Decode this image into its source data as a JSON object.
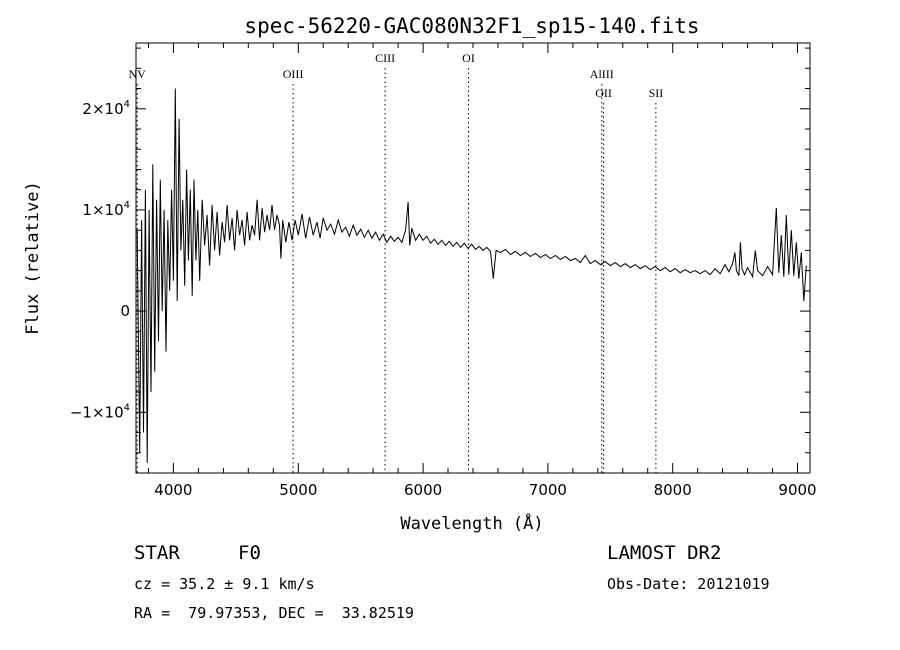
{
  "chart_data": {
    "type": "line",
    "title": "spec-56220-GAC080N32F1_sp15-140.fits",
    "xlabel": "Wavelength (Å)",
    "ylabel": "Flux (relative)",
    "xlim": [
      3700,
      9100
    ],
    "ylim": [
      -16000,
      26500
    ],
    "xticks": [
      {
        "value": 4000,
        "label": "4000"
      },
      {
        "value": 5000,
        "label": "5000"
      },
      {
        "value": 6000,
        "label": "6000"
      },
      {
        "value": 7000,
        "label": "7000"
      },
      {
        "value": 8000,
        "label": "8000"
      },
      {
        "value": 9000,
        "label": "9000"
      }
    ],
    "yticks": [
      {
        "value": 20000,
        "label": "2×10",
        "exp": "4"
      },
      {
        "value": 10000,
        "label": "1×10",
        "exp": "4"
      },
      {
        "value": 0,
        "label": "0",
        "exp": ""
      },
      {
        "value": -10000,
        "label": "−1×10",
        "exp": "4"
      }
    ],
    "lines": [
      {
        "name": "NV",
        "wavelength": 3710,
        "level": 0
      },
      {
        "name": "OIII",
        "wavelength": 4959,
        "level": 0
      },
      {
        "name": "CIII",
        "wavelength": 5696,
        "level": 1
      },
      {
        "name": "OI",
        "wavelength": 6364,
        "level": 1
      },
      {
        "name": "AlIII",
        "wavelength": 7432,
        "level": 0
      },
      {
        "name": "OII",
        "wavelength": 7446,
        "level": 2
      },
      {
        "name": "SII",
        "wavelength": 7865,
        "level": 2
      }
    ],
    "series": [
      {
        "points": [
          [
            3710,
            8000
          ],
          [
            3730,
            -14000
          ],
          [
            3745,
            9000
          ],
          [
            3760,
            -12000
          ],
          [
            3775,
            12000
          ],
          [
            3790,
            -15000
          ],
          [
            3805,
            10000
          ],
          [
            3820,
            -8000
          ],
          [
            3835,
            14500
          ],
          [
            3850,
            -6000
          ],
          [
            3865,
            11000
          ],
          [
            3880,
            -3000
          ],
          [
            3895,
            13000
          ],
          [
            3910,
            0
          ],
          [
            3925,
            10000
          ],
          [
            3940,
            -4000
          ],
          [
            3955,
            9000
          ],
          [
            3970,
            2000
          ],
          [
            3985,
            12000
          ],
          [
            4000,
            3000
          ],
          [
            4015,
            22000
          ],
          [
            4030,
            1000
          ],
          [
            4045,
            19000
          ],
          [
            4060,
            6000
          ],
          [
            4075,
            11000
          ],
          [
            4090,
            2500
          ],
          [
            4105,
            14000
          ],
          [
            4120,
            5000
          ],
          [
            4135,
            12000
          ],
          [
            4150,
            1500
          ],
          [
            4165,
            13000
          ],
          [
            4180,
            5000
          ],
          [
            4195,
            10000
          ],
          [
            4210,
            3000
          ],
          [
            4230,
            11000
          ],
          [
            4250,
            6500
          ],
          [
            4270,
            9500
          ],
          [
            4290,
            4500
          ],
          [
            4310,
            10500
          ],
          [
            4330,
            6000
          ],
          [
            4350,
            9800
          ],
          [
            4370,
            5500
          ],
          [
            4390,
            8800
          ],
          [
            4410,
            6800
          ],
          [
            4430,
            10500
          ],
          [
            4450,
            7000
          ],
          [
            4470,
            9200
          ],
          [
            4490,
            6000
          ],
          [
            4510,
            10000
          ],
          [
            4530,
            7500
          ],
          [
            4550,
            9000
          ],
          [
            4570,
            6500
          ],
          [
            4590,
            9800
          ],
          [
            4610,
            7000
          ],
          [
            4630,
            8500
          ],
          [
            4650,
            7500
          ],
          [
            4670,
            11000
          ],
          [
            4690,
            7000
          ],
          [
            4710,
            10200
          ],
          [
            4730,
            7800
          ],
          [
            4750,
            9500
          ],
          [
            4770,
            8000
          ],
          [
            4790,
            10500
          ],
          [
            4810,
            8000
          ],
          [
            4830,
            9500
          ],
          [
            4850,
            8500
          ],
          [
            4861,
            5200
          ],
          [
            4875,
            9000
          ],
          [
            4900,
            6800
          ],
          [
            4925,
            8800
          ],
          [
            4950,
            7000
          ],
          [
            4975,
            9000
          ],
          [
            5000,
            7500
          ],
          [
            5030,
            9600
          ],
          [
            5060,
            7200
          ],
          [
            5090,
            9300
          ],
          [
            5120,
            7500
          ],
          [
            5150,
            8800
          ],
          [
            5175,
            7200
          ],
          [
            5200,
            9200
          ],
          [
            5230,
            8000
          ],
          [
            5260,
            8600
          ],
          [
            5290,
            7600
          ],
          [
            5320,
            9000
          ],
          [
            5350,
            7800
          ],
          [
            5380,
            8300
          ],
          [
            5410,
            7400
          ],
          [
            5440,
            8500
          ],
          [
            5470,
            7500
          ],
          [
            5500,
            8100
          ],
          [
            5530,
            7300
          ],
          [
            5560,
            8000
          ],
          [
            5590,
            7200
          ],
          [
            5620,
            7800
          ],
          [
            5650,
            7000
          ],
          [
            5680,
            7600
          ],
          [
            5710,
            6800
          ],
          [
            5740,
            7400
          ],
          [
            5770,
            6900
          ],
          [
            5800,
            7300
          ],
          [
            5830,
            6800
          ],
          [
            5860,
            8000
          ],
          [
            5880,
            10800
          ],
          [
            5893,
            6500
          ],
          [
            5910,
            8200
          ],
          [
            5940,
            7000
          ],
          [
            5970,
            7600
          ],
          [
            6000,
            7000
          ],
          [
            6030,
            7400
          ],
          [
            6060,
            6700
          ],
          [
            6090,
            7100
          ],
          [
            6120,
            6600
          ],
          [
            6150,
            7000
          ],
          [
            6180,
            6500
          ],
          [
            6210,
            6900
          ],
          [
            6240,
            6400
          ],
          [
            6270,
            6800
          ],
          [
            6300,
            6300
          ],
          [
            6330,
            6700
          ],
          [
            6360,
            6200
          ],
          [
            6390,
            6600
          ],
          [
            6420,
            6100
          ],
          [
            6450,
            6400
          ],
          [
            6480,
            6000
          ],
          [
            6510,
            6300
          ],
          [
            6540,
            5900
          ],
          [
            6563,
            3200
          ],
          [
            6585,
            6000
          ],
          [
            6620,
            5800
          ],
          [
            6660,
            6100
          ],
          [
            6700,
            5600
          ],
          [
            6740,
            5900
          ],
          [
            6780,
            5500
          ],
          [
            6820,
            5800
          ],
          [
            6860,
            5400
          ],
          [
            6900,
            5700
          ],
          [
            6940,
            5300
          ],
          [
            6980,
            5600
          ],
          [
            7020,
            5200
          ],
          [
            7060,
            5500
          ],
          [
            7100,
            5100
          ],
          [
            7140,
            5400
          ],
          [
            7180,
            5000
          ],
          [
            7220,
            5200
          ],
          [
            7260,
            4800
          ],
          [
            7300,
            5500
          ],
          [
            7340,
            4700
          ],
          [
            7380,
            5000
          ],
          [
            7420,
            4600
          ],
          [
            7460,
            4900
          ],
          [
            7500,
            4500
          ],
          [
            7540,
            4800
          ],
          [
            7580,
            4400
          ],
          [
            7620,
            4700
          ],
          [
            7660,
            4300
          ],
          [
            7700,
            4600
          ],
          [
            7740,
            4200
          ],
          [
            7780,
            4500
          ],
          [
            7820,
            4100
          ],
          [
            7860,
            4400
          ],
          [
            7900,
            4000
          ],
          [
            7940,
            4300
          ],
          [
            7980,
            3900
          ],
          [
            8020,
            4200
          ],
          [
            8060,
            3800
          ],
          [
            8100,
            4100
          ],
          [
            8140,
            3800
          ],
          [
            8180,
            4000
          ],
          [
            8220,
            3700
          ],
          [
            8260,
            4000
          ],
          [
            8300,
            3600
          ],
          [
            8340,
            4200
          ],
          [
            8380,
            3700
          ],
          [
            8420,
            4600
          ],
          [
            8450,
            3900
          ],
          [
            8480,
            4700
          ],
          [
            8498,
            5800
          ],
          [
            8510,
            4000
          ],
          [
            8530,
            3500
          ],
          [
            8542,
            6800
          ],
          [
            8555,
            4200
          ],
          [
            8575,
            3600
          ],
          [
            8600,
            4300
          ],
          [
            8640,
            3400
          ],
          [
            8662,
            6000
          ],
          [
            8680,
            4000
          ],
          [
            8720,
            3500
          ],
          [
            8760,
            4400
          ],
          [
            8800,
            3600
          ],
          [
            8830,
            10200
          ],
          [
            8850,
            3800
          ],
          [
            8870,
            7500
          ],
          [
            8890,
            3400
          ],
          [
            8910,
            9500
          ],
          [
            8930,
            3600
          ],
          [
            8950,
            8000
          ],
          [
            8970,
            3500
          ],
          [
            8990,
            6800
          ],
          [
            9010,
            3200
          ],
          [
            9030,
            5800
          ],
          [
            9050,
            1000
          ],
          [
            9070,
            4500
          ]
        ]
      }
    ]
  },
  "info": {
    "class_label": "STAR",
    "subclass_label": "F0",
    "cz_line": "cz = 35.2 ± 9.1 km/s",
    "radec_line": "RA =  79.97353, DEC =  33.82519",
    "survey": "LAMOST DR2",
    "obs_date": "Obs-Date: 20121019"
  }
}
